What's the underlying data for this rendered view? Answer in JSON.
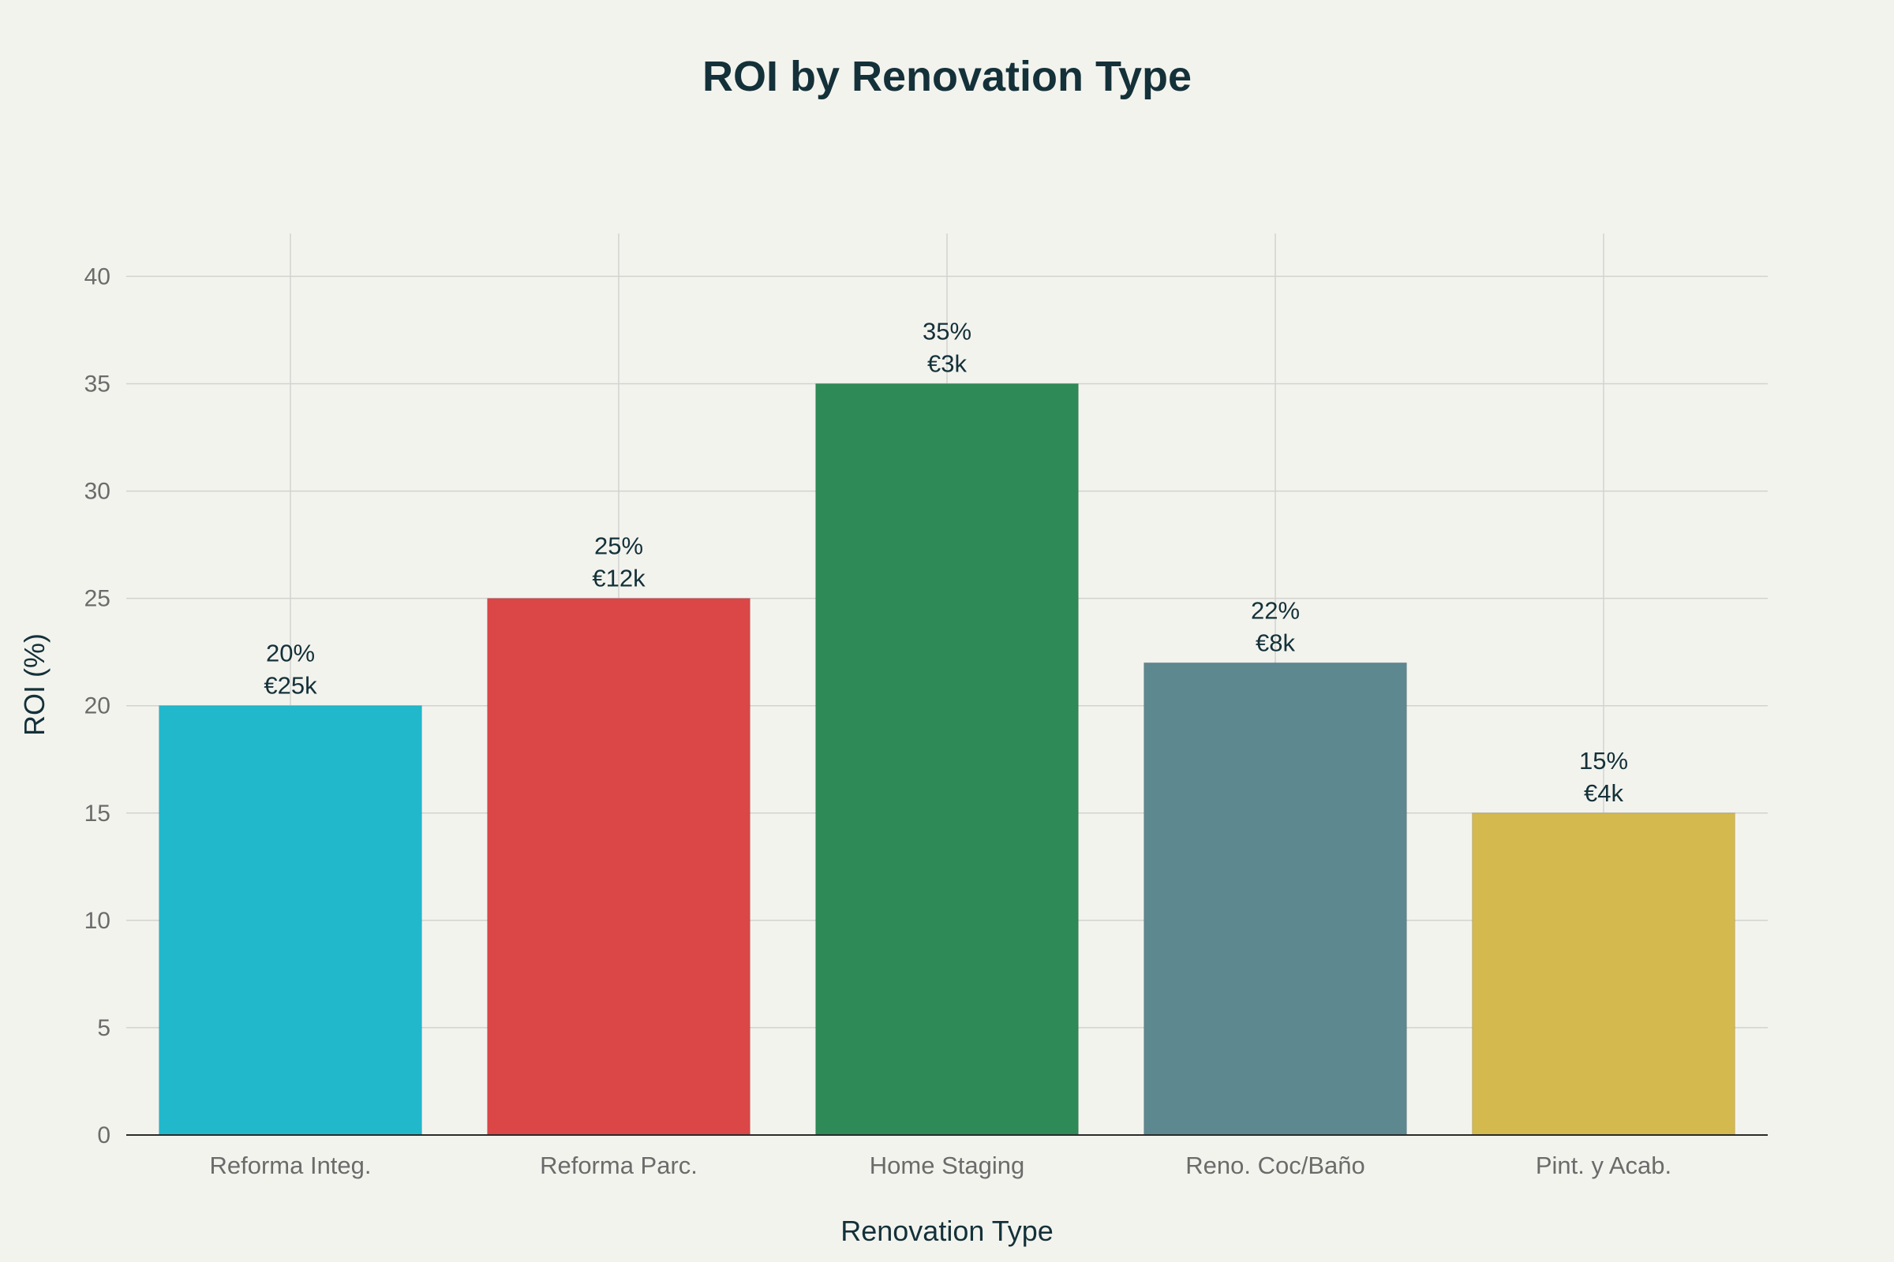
{
  "chart_data": {
    "type": "bar",
    "title": "ROI by Renovation Type",
    "xlabel": "Renovation Type",
    "ylabel": "ROI (%)",
    "categories": [
      "Reforma Integ.",
      "Reforma Parc.",
      "Home Staging",
      "Reno. Coc/Baño",
      "Pint. y Acab."
    ],
    "values": [
      20,
      25,
      35,
      22,
      15
    ],
    "cost_labels": [
      "€25k",
      "€12k",
      "€3k",
      "€8k",
      "€4k"
    ],
    "colors": [
      "#21b8cc",
      "#db4647",
      "#2e8a57",
      "#5e8890",
      "#d3b94e"
    ],
    "ylim": [
      0,
      42
    ],
    "yticks": [
      0,
      5,
      10,
      15,
      20,
      25,
      30,
      35,
      40
    ],
    "grid": true,
    "legend": "none"
  }
}
